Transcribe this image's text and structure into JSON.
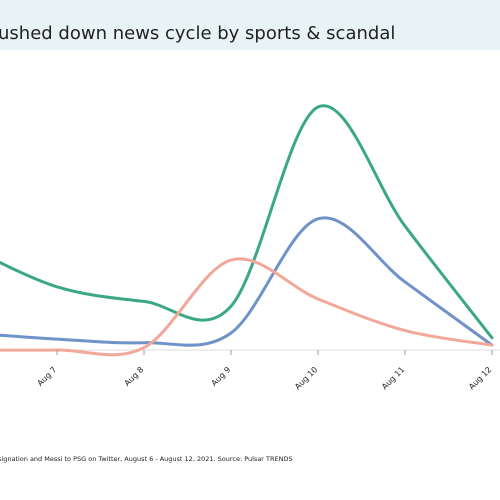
{
  "chart_data": {
    "type": "line",
    "title": "ushed down news cycle by sports & scandal",
    "caption": "signation and Messi to PSG on Twitter, August 6 - August 12, 2021. Source: Pulsar TRENDS",
    "categories": [
      null,
      "Aug 7",
      "Aug 8",
      "Aug 9",
      "Aug 10",
      "Aug 11",
      "Aug 12"
    ],
    "ylim": [
      0,
      100
    ],
    "series": [
      {
        "color": "#3aa982",
        "values": [
          42,
          26,
          20,
          18,
          100,
          51,
          5
        ]
      },
      {
        "color": "#6f93c8",
        "values": [
          7,
          4.5,
          3,
          7,
          54,
          28,
          2
        ]
      },
      {
        "color": "#f2a899",
        "values": [
          0,
          0,
          1,
          37,
          21,
          8,
          2
        ]
      }
    ]
  }
}
